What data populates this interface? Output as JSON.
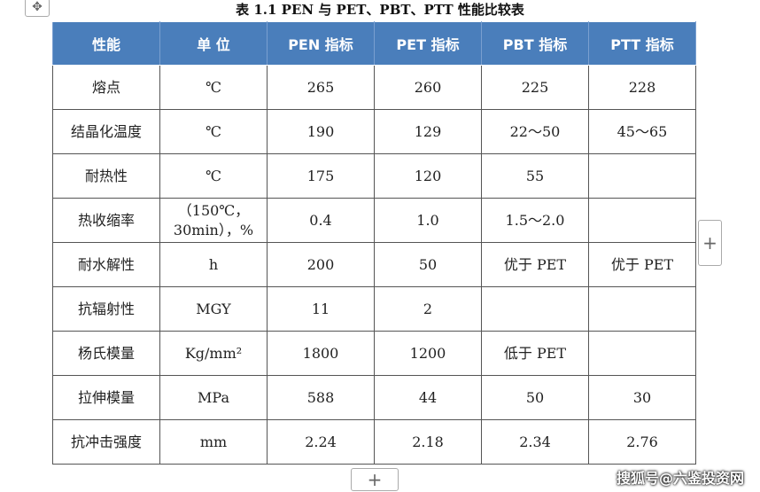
{
  "title": "表 1.1 PEN 与 PET、PBT、PTT 性能比较表",
  "table": {
    "header": [
      "性能",
      "单 位",
      "PEN 指标",
      "PET 指标",
      "PBT 指标",
      "PTT 指标"
    ],
    "rows": [
      [
        "熔点",
        "℃",
        "265",
        "260",
        "225",
        "228"
      ],
      [
        "结晶化温度",
        "℃",
        "190",
        "129",
        "22～50",
        "45～65"
      ],
      [
        "耐热性",
        "℃",
        "175",
        "120",
        "55",
        null
      ],
      [
        "热收缩率",
        "（150℃，30min），%",
        "0.4",
        "1.0",
        "1.5～2.0",
        null
      ],
      [
        "耐水解性",
        "h",
        "200",
        "50",
        "优于 PET",
        "优于 PET"
      ],
      [
        "抗辐射性",
        "MGY",
        "11",
        "2",
        null,
        null
      ],
      [
        "杨氏模量",
        "Kg/mm²",
        "1800",
        "1200",
        "低于 PET",
        null
      ],
      [
        "拉伸模量",
        "MPa",
        "588",
        "44",
        "50",
        "30"
      ],
      [
        "抗冲击强度",
        "mm",
        "2.24",
        "2.18",
        "2.34",
        "2.76"
      ]
    ]
  },
  "watermark": "搜狐号@六鉴投资网"
}
